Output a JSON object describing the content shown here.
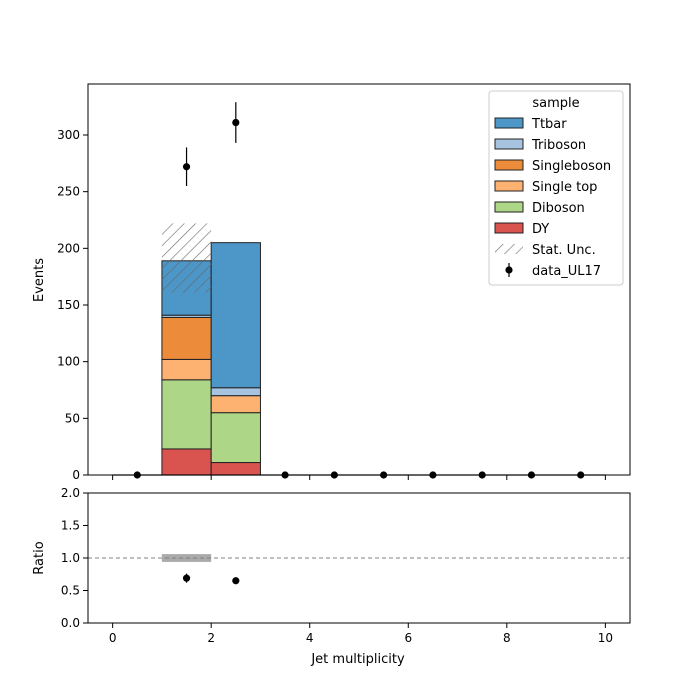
{
  "chart_data": [
    {
      "type": "bar",
      "stacked": true,
      "ylabel": "Events",
      "xlim": [
        -0.5,
        10.5
      ],
      "ylim": [
        0,
        345
      ],
      "yticks": [
        0,
        50,
        100,
        150,
        200,
        250,
        300
      ],
      "x_bin_edges": [
        0,
        1,
        2,
        3,
        4,
        5,
        6,
        7,
        8,
        9,
        10
      ],
      "legend": {
        "title": "sample",
        "placement": "upper right",
        "entries": [
          "Ttbar",
          "Triboson",
          "Singleboson",
          "Single top",
          "Diboson",
          "DY",
          "Stat. Unc.",
          "data_UL17"
        ]
      },
      "series": [
        {
          "name": "DY",
          "color": "#d9534f",
          "values": [
            0,
            23,
            11,
            0,
            0,
            0,
            0,
            0,
            0,
            0
          ]
        },
        {
          "name": "Diboson",
          "color": "#aed687",
          "values": [
            0,
            61,
            44,
            0,
            0,
            0,
            0,
            0,
            0,
            0
          ]
        },
        {
          "name": "Single top",
          "color": "#fdb272",
          "values": [
            0,
            18,
            15,
            0,
            0,
            0,
            0,
            0,
            0,
            0
          ]
        },
        {
          "name": "Singleboson",
          "color": "#ec8c3b",
          "values": [
            0,
            37,
            0,
            0,
            0,
            0,
            0,
            0,
            0,
            0
          ]
        },
        {
          "name": "Triboson",
          "color": "#a6c3e0",
          "values": [
            0,
            2,
            7,
            0,
            0,
            0,
            0,
            0,
            0,
            0
          ]
        },
        {
          "name": "Ttbar",
          "color": "#4c96c8",
          "values": [
            0,
            48,
            128,
            0,
            0,
            0,
            0,
            0,
            0,
            0
          ]
        }
      ],
      "stat_unc": {
        "name": "Stat. Unc.",
        "bins": [
          {
            "bin": [
              1,
              2
            ],
            "low": 161,
            "high": 222
          }
        ]
      },
      "data": {
        "name": "data_UL17",
        "x": [
          0.5,
          1.5,
          2.5,
          3.5,
          4.5,
          5.5,
          6.5,
          7.5,
          8.5,
          9.5
        ],
        "y": [
          0,
          272,
          311,
          0,
          0,
          0,
          0,
          0,
          0,
          0
        ],
        "yerr": [
          0,
          17,
          18,
          0,
          0,
          0,
          0,
          0,
          0,
          0
        ]
      }
    },
    {
      "type": "scatter",
      "xlabel": "Jet multiplicity",
      "ylabel": "Ratio",
      "xlim": [
        -0.5,
        10.5
      ],
      "ylim": [
        0,
        2
      ],
      "xticks": [
        0,
        2,
        4,
        6,
        8,
        10
      ],
      "yticks": [
        "0.0",
        "0.5",
        "1.0",
        "1.5",
        "2.0"
      ],
      "reference_line": 1.0,
      "unc_band": [
        {
          "bin": [
            1,
            2
          ],
          "low": 0.94,
          "high": 1.06
        }
      ],
      "points": {
        "x": [
          1.5,
          2.5
        ],
        "y": [
          0.69,
          0.65
        ],
        "yerr": [
          0.07,
          0.0
        ]
      }
    }
  ]
}
